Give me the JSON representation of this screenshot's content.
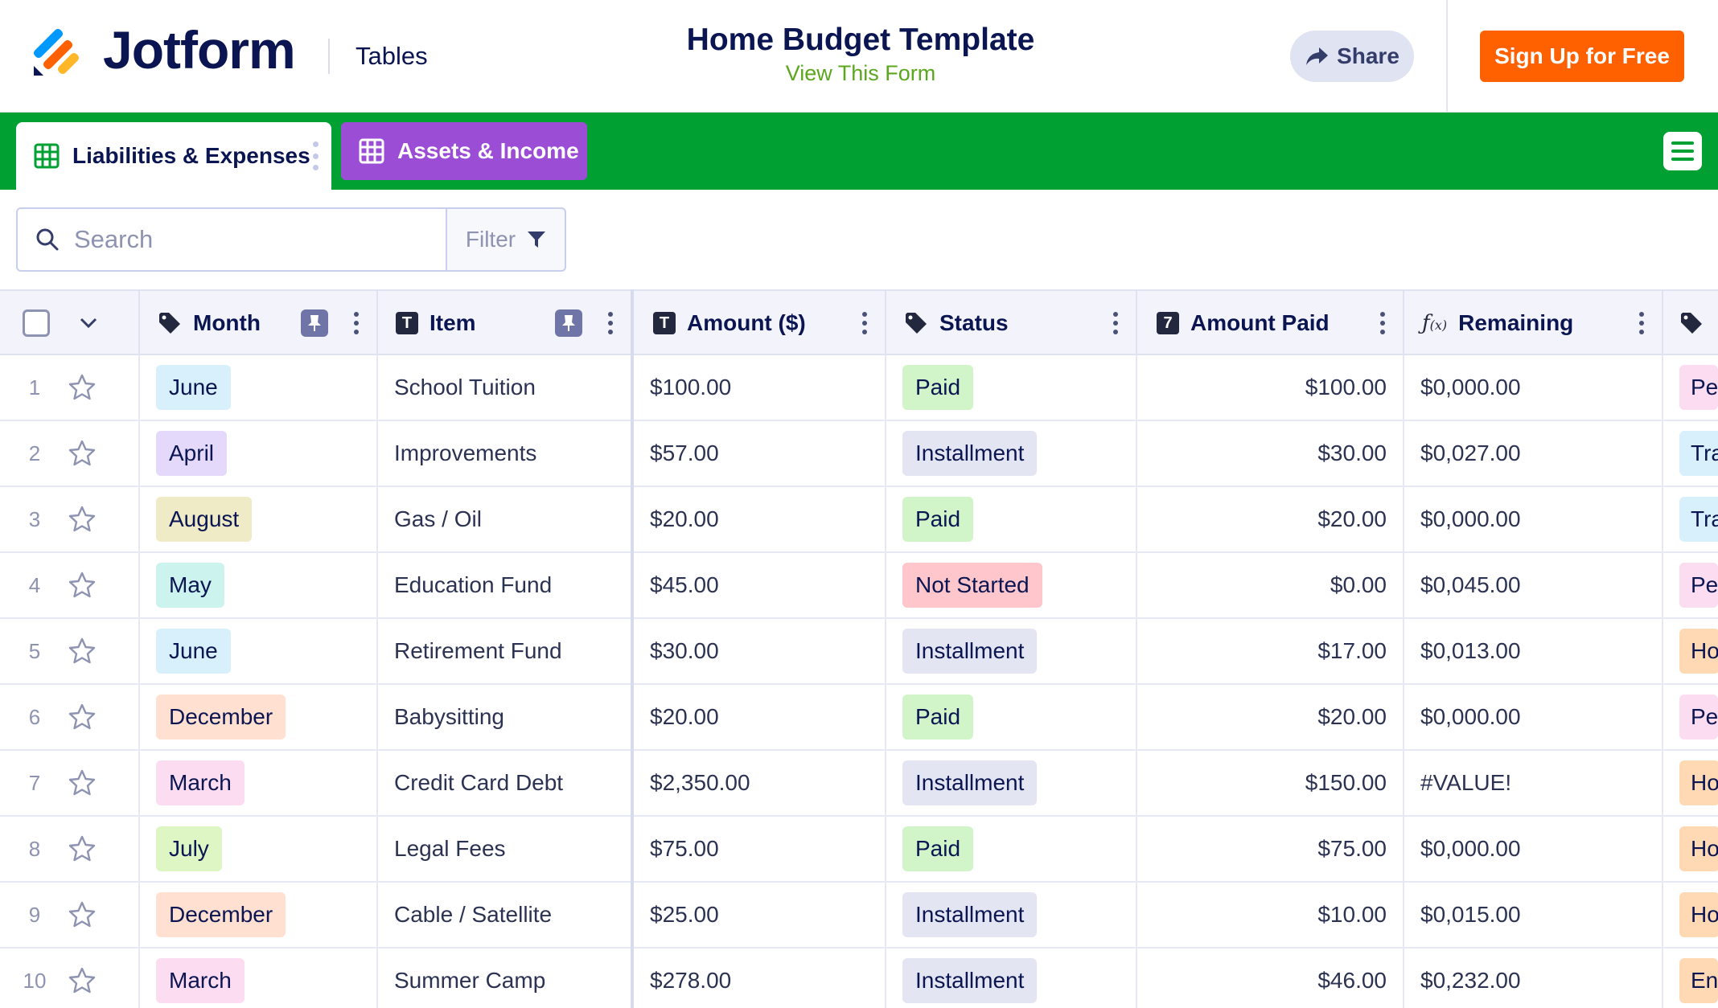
{
  "header": {
    "brand": "Jotform",
    "product": "Tables",
    "form_title": "Home Budget Template",
    "view_form_link": "View This Form",
    "share_label": "Share",
    "signup_label": "Sign Up for Free"
  },
  "tabs": [
    {
      "label": "Liabilities & Expenses",
      "active": true
    },
    {
      "label": "Assets & Income",
      "active": false
    }
  ],
  "toolbar": {
    "search_placeholder": "Search",
    "filter_label": "Filter"
  },
  "table": {
    "columns": [
      {
        "name": "Month",
        "type": "tag",
        "pinned": true
      },
      {
        "name": "Item",
        "type": "text",
        "pinned": true
      },
      {
        "name": "Amount ($)",
        "type": "text"
      },
      {
        "name": "Status",
        "type": "tag"
      },
      {
        "name": "Amount Paid",
        "type": "number"
      },
      {
        "name": "Remaining",
        "type": "formula"
      },
      {
        "name": "",
        "type": "tag"
      }
    ],
    "rows": [
      {
        "num": "1",
        "month": "June",
        "month_color": "#d8f0fb",
        "item": "School Tuition",
        "amount": "$100.00",
        "status": "Paid",
        "status_color": "#d1f5c8",
        "paid": "$100.00",
        "remaining": "$0,000.00",
        "extra": "Pe",
        "extra_color": "#fbdcf1"
      },
      {
        "num": "2",
        "month": "April",
        "month_color": "#e4d8fb",
        "item": "Improvements",
        "amount": "$57.00",
        "status": "Installment",
        "status_color": "#e3e6f2",
        "paid": "$30.00",
        "remaining": "$0,027.00",
        "extra": "Tra",
        "extra_color": "#d8f0fb"
      },
      {
        "num": "3",
        "month": "August",
        "month_color": "#efebc7",
        "item": "Gas / Oil",
        "amount": "$20.00",
        "status": "Paid",
        "status_color": "#d1f5c8",
        "paid": "$20.00",
        "remaining": "$0,000.00",
        "extra": "Tra",
        "extra_color": "#d8f0fb"
      },
      {
        "num": "4",
        "month": "May",
        "month_color": "#cdf3ef",
        "item": "Education Fund",
        "amount": "$45.00",
        "status": "Not Started",
        "status_color": "#ffc6cc",
        "paid": "$0.00",
        "remaining": "$0,045.00",
        "extra": "Pe",
        "extra_color": "#fbdcf1"
      },
      {
        "num": "5",
        "month": "June",
        "month_color": "#d8f0fb",
        "item": "Retirement Fund",
        "amount": "$30.00",
        "status": "Installment",
        "status_color": "#e3e6f2",
        "paid": "$17.00",
        "remaining": "$0,013.00",
        "extra": "Ho",
        "extra_color": "#ffd9b3"
      },
      {
        "num": "6",
        "month": "December",
        "month_color": "#ffe0d1",
        "item": "Babysitting",
        "amount": "$20.00",
        "status": "Paid",
        "status_color": "#d1f5c8",
        "paid": "$20.00",
        "remaining": "$0,000.00",
        "extra": "Pe",
        "extra_color": "#fbdcf1"
      },
      {
        "num": "7",
        "month": "March",
        "month_color": "#fbdcf1",
        "item": "Credit Card Debt",
        "amount": "$2,350.00",
        "status": "Installment",
        "status_color": "#e3e6f2",
        "paid": "$150.00",
        "remaining": "#VALUE!",
        "extra": "Ho",
        "extra_color": "#ffd9b3"
      },
      {
        "num": "8",
        "month": "July",
        "month_color": "#ddf6c4",
        "item": "Legal Fees",
        "amount": "$75.00",
        "status": "Paid",
        "status_color": "#d1f5c8",
        "paid": "$75.00",
        "remaining": "$0,000.00",
        "extra": "Ho",
        "extra_color": "#ffd9b3"
      },
      {
        "num": "9",
        "month": "December",
        "month_color": "#ffe0d1",
        "item": "Cable / Satellite",
        "amount": "$25.00",
        "status": "Installment",
        "status_color": "#e3e6f2",
        "paid": "$10.00",
        "remaining": "$0,015.00",
        "extra": "Ho",
        "extra_color": "#ffd9b3"
      },
      {
        "num": "10",
        "month": "March",
        "month_color": "#fbdcf1",
        "item": "Summer Camp",
        "amount": "$278.00",
        "status": "Installment",
        "status_color": "#e3e6f2",
        "paid": "$46.00",
        "remaining": "$0,232.00",
        "extra": "En",
        "extra_color": "#ffd9b3"
      }
    ]
  },
  "colors": {
    "tabbar": "#00a032",
    "other_tab": "#9c4dd6",
    "signup": "#ff6100",
    "link": "#5ba71d"
  },
  "icons": {
    "logo": "jotform-logo-icon",
    "share": "share-arrow-icon",
    "search": "search-icon",
    "filter": "funnel-icon",
    "menu": "hamburger-menu-icon",
    "star": "star-icon",
    "pin": "pin-icon",
    "tag": "tag-icon",
    "text": "text-type-icon",
    "number": "number-type-icon",
    "formula": "formula-icon"
  }
}
